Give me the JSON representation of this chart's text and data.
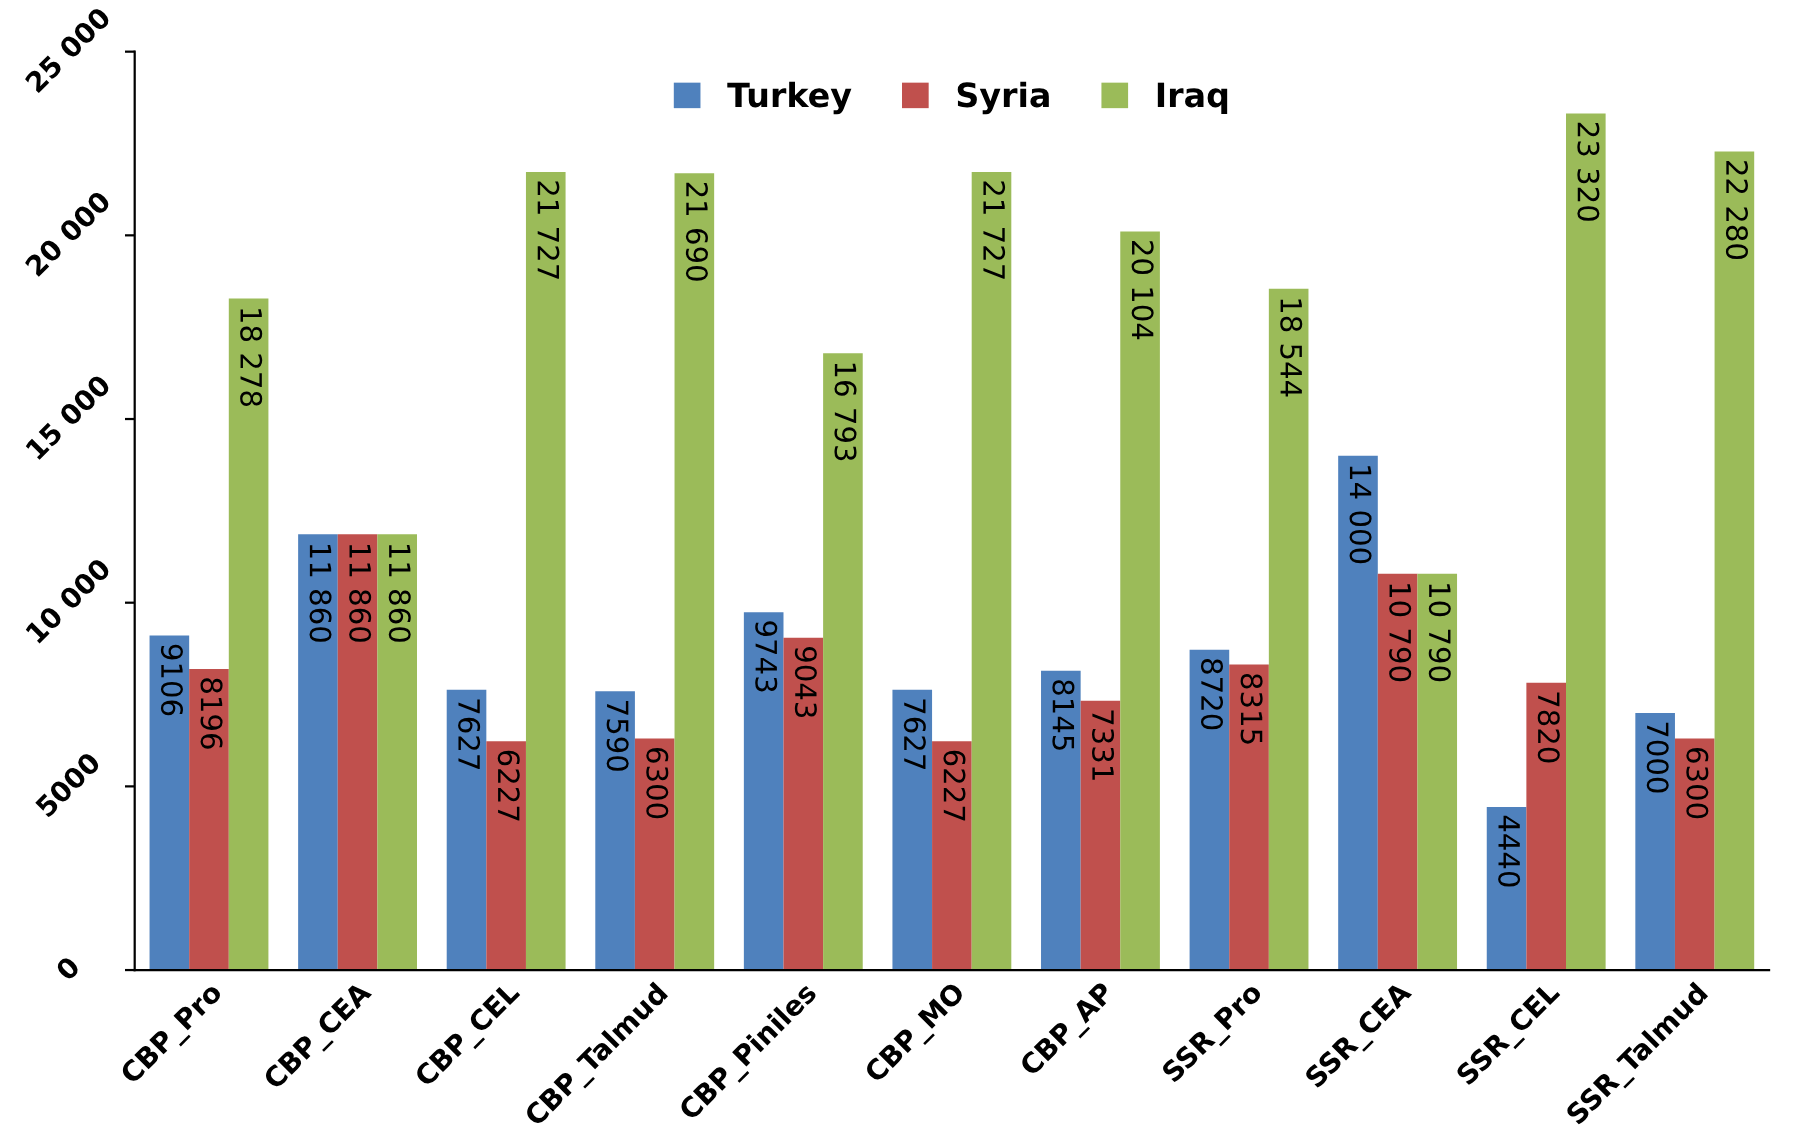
{
  "chart_data": {
    "type": "bar",
    "categories": [
      "CBP_Pro",
      "CBP_CEA",
      "CBP_CEL",
      "CBP_Talmud",
      "CBP_Piniles",
      "CBP_MO",
      "CBP_AP",
      "SSR_Pro",
      "SSR_CEA",
      "SSR_CEL",
      "SSR_Talmud"
    ],
    "series": [
      {
        "name": "Turkey",
        "color": "#4f81bd",
        "values": [
          9106,
          11860,
          7627,
          7590,
          9743,
          7627,
          8145,
          8720,
          14000,
          4440,
          7000
        ],
        "value_labels": [
          "9106",
          "11 860",
          "7627",
          "7590",
          "9743",
          "7627",
          "8145",
          "8720",
          "14 000",
          "4440",
          "7000"
        ]
      },
      {
        "name": "Syria",
        "color": "#c0504d",
        "values": [
          8196,
          11860,
          6227,
          6300,
          9043,
          6227,
          7331,
          8315,
          10790,
          7820,
          6300
        ],
        "value_labels": [
          "8196",
          "11 860",
          "6227",
          "6300",
          "9043",
          "6227",
          "7331",
          "8315",
          "10 790",
          "7820",
          "6300"
        ]
      },
      {
        "name": "Iraq",
        "color": "#9bbb59",
        "values": [
          18278,
          11860,
          21727,
          21690,
          16793,
          21727,
          20104,
          18544,
          10790,
          23320,
          22280
        ],
        "value_labels": [
          "18 278",
          "11 860",
          "21 727",
          "21 690",
          "16 793",
          "21 727",
          "20 104",
          "18 544",
          "10 790",
          "23 320",
          "22 280"
        ]
      }
    ],
    "ylim": [
      0,
      25000
    ],
    "yticks": [
      0,
      5000,
      {
        "value": 10000,
        "label": "10 000"
      },
      {
        "value": 15000,
        "label": "15 000"
      },
      {
        "value": 20000,
        "label": "20 000"
      },
      {
        "value": 25000,
        "label": "25 000"
      }
    ],
    "grid": false,
    "legend": "top"
  }
}
